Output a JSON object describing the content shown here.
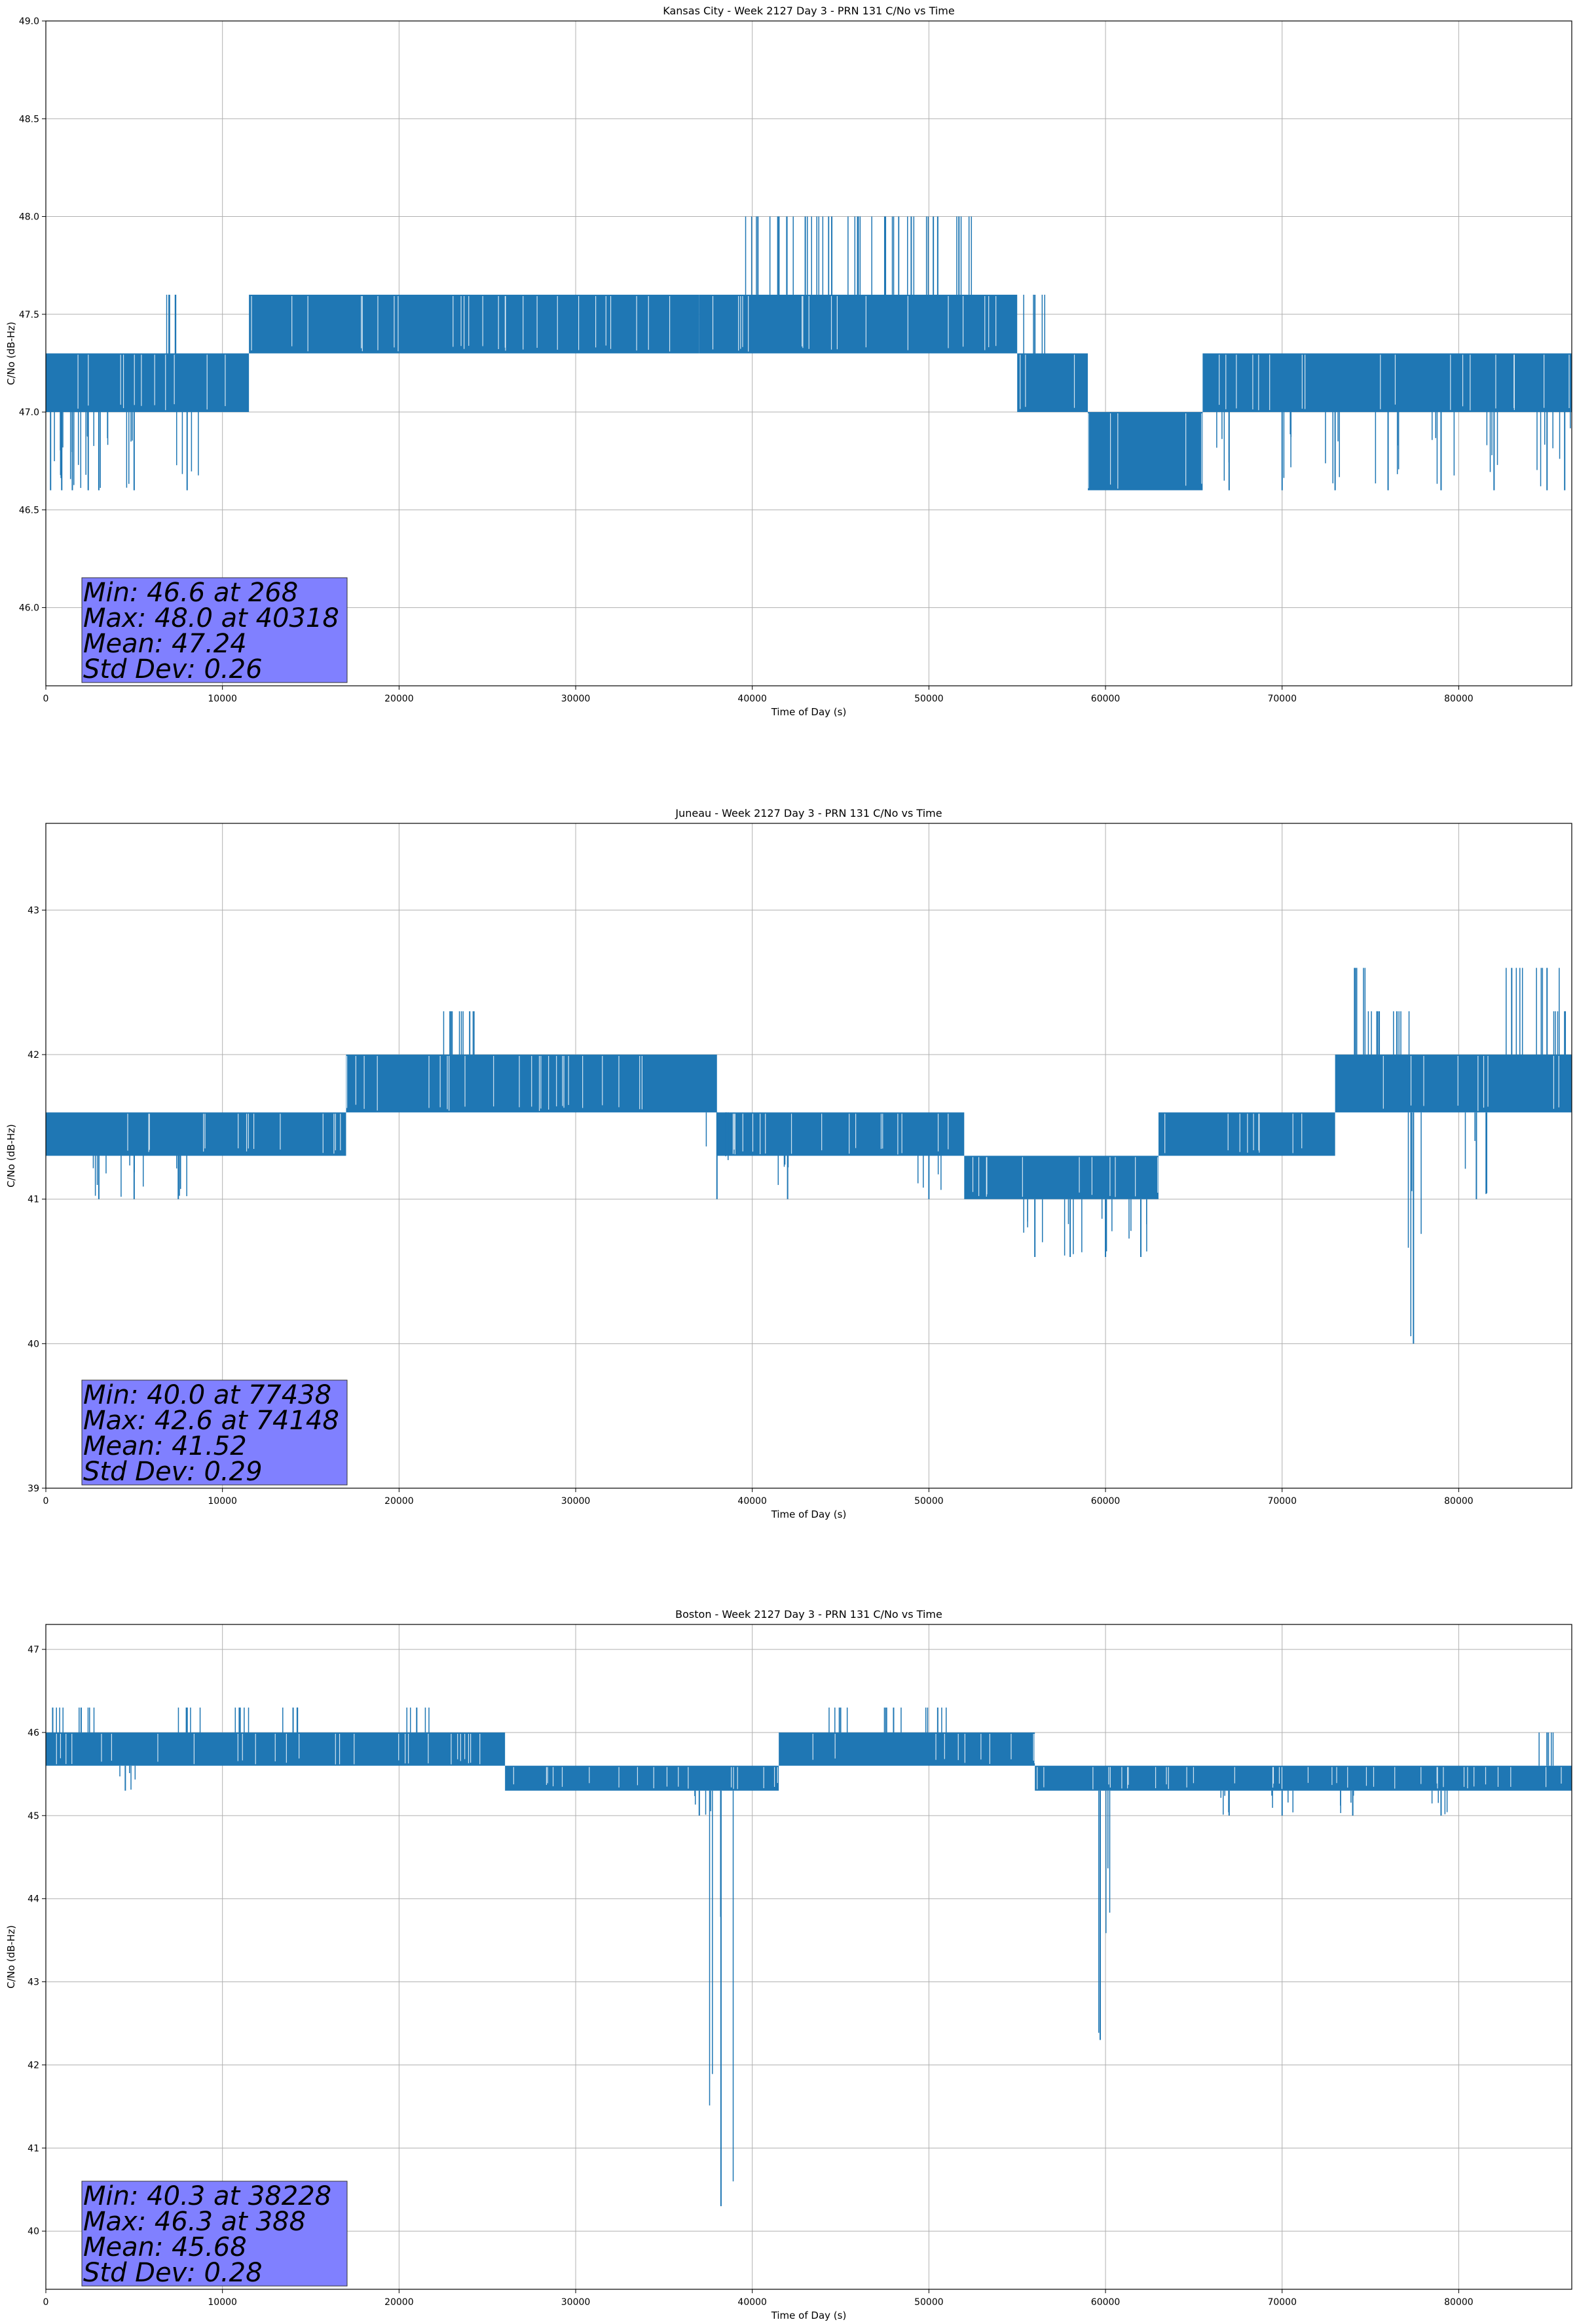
{
  "chart_data": [
    {
      "type": "line",
      "title": "Kansas City - Week 2127 Day 3 - PRN 131 C/No vs Time",
      "xlabel": "Time of Day (s)",
      "ylabel": "C/No (dB-Hz)",
      "xlim": [
        0,
        86400
      ],
      "ylim": [
        45.6,
        49.0
      ],
      "xticks": [
        0,
        10000,
        20000,
        30000,
        40000,
        50000,
        60000,
        70000,
        80000
      ],
      "yticks": [
        46.0,
        46.5,
        47.0,
        47.5,
        48.0,
        48.5,
        49.0
      ],
      "ytick_labels": [
        "46.0",
        "46.5",
        "47.0",
        "47.5",
        "48.0",
        "48.5",
        "49.0"
      ],
      "grid": true,
      "series_color": "#1f77b4",
      "band_segments": [
        {
          "x": [
            0,
            11500
          ],
          "lo": 47.0,
          "hi": 47.3
        },
        {
          "x": [
            11500,
            37000
          ],
          "lo": 47.3,
          "hi": 47.6
        },
        {
          "x": [
            37000,
            55000
          ],
          "lo": 47.3,
          "hi": 47.6
        },
        {
          "x": [
            55000,
            59000
          ],
          "lo": 47.0,
          "hi": 47.3
        },
        {
          "x": [
            59000,
            65500
          ],
          "lo": 46.6,
          "hi": 47.0
        },
        {
          "x": [
            65500,
            86400
          ],
          "lo": 47.0,
          "hi": 47.3
        }
      ],
      "spikes": [
        {
          "x": 268,
          "y": 46.6
        },
        {
          "x": 900,
          "y": 46.6
        },
        {
          "x": 1500,
          "y": 46.6
        },
        {
          "x": 2400,
          "y": 46.6
        },
        {
          "x": 3000,
          "y": 46.6
        },
        {
          "x": 5000,
          "y": 46.6
        },
        {
          "x": 7000,
          "y": 47.6
        },
        {
          "x": 8000,
          "y": 46.6
        },
        {
          "x": 40318,
          "y": 48.0
        },
        {
          "x": 41500,
          "y": 48.0
        },
        {
          "x": 43000,
          "y": 48.0
        },
        {
          "x": 44500,
          "y": 48.0
        },
        {
          "x": 46000,
          "y": 48.0
        },
        {
          "x": 47500,
          "y": 48.0
        },
        {
          "x": 49000,
          "y": 48.0
        },
        {
          "x": 50500,
          "y": 48.0
        },
        {
          "x": 51700,
          "y": 48.0
        },
        {
          "x": 56000,
          "y": 47.6
        },
        {
          "x": 57500,
          "y": 47.0
        },
        {
          "x": 67000,
          "y": 46.6
        },
        {
          "x": 70000,
          "y": 46.6
        },
        {
          "x": 73000,
          "y": 46.6
        },
        {
          "x": 76000,
          "y": 46.6
        },
        {
          "x": 79000,
          "y": 46.6
        },
        {
          "x": 82000,
          "y": 46.6
        },
        {
          "x": 85000,
          "y": 46.6
        },
        {
          "x": 86000,
          "y": 46.6
        }
      ],
      "stats": {
        "min": 46.6,
        "min_at": 268,
        "max": 48.0,
        "max_at": 40318,
        "mean": 47.24,
        "std_dev": 0.26
      },
      "stats_lines": [
        "Min: 46.6 at 268",
        "Max: 48.0 at 40318",
        "Mean: 47.24",
        "Std Dev: 0.26"
      ]
    },
    {
      "type": "line",
      "title": "Juneau - Week 2127 Day 3 - PRN 131 C/No vs Time",
      "xlabel": "Time of Day (s)",
      "ylabel": "C/No (dB-Hz)",
      "xlim": [
        0,
        86400
      ],
      "ylim": [
        39.0,
        43.6
      ],
      "xticks": [
        0,
        10000,
        20000,
        30000,
        40000,
        50000,
        60000,
        70000,
        80000
      ],
      "yticks": [
        39,
        40,
        41,
        42,
        43
      ],
      "ytick_labels": [
        "39",
        "40",
        "41",
        "42",
        "43"
      ],
      "grid": true,
      "series_color": "#1f77b4",
      "band_segments": [
        {
          "x": [
            0,
            17000
          ],
          "lo": 41.3,
          "hi": 41.6
        },
        {
          "x": [
            17000,
            38000
          ],
          "lo": 41.6,
          "hi": 42.0
        },
        {
          "x": [
            38000,
            52000
          ],
          "lo": 41.3,
          "hi": 41.6
        },
        {
          "x": [
            52000,
            63000
          ],
          "lo": 41.0,
          "hi": 41.3
        },
        {
          "x": [
            63000,
            73000
          ],
          "lo": 41.3,
          "hi": 41.6
        },
        {
          "x": [
            73000,
            86400
          ],
          "lo": 41.6,
          "hi": 42.0
        }
      ],
      "spikes": [
        {
          "x": 3000,
          "y": 41.0
        },
        {
          "x": 5000,
          "y": 41.0
        },
        {
          "x": 7500,
          "y": 41.0
        },
        {
          "x": 23000,
          "y": 42.3
        },
        {
          "x": 24000,
          "y": 42.3
        },
        {
          "x": 38000,
          "y": 41.0
        },
        {
          "x": 42000,
          "y": 41.0
        },
        {
          "x": 50000,
          "y": 41.0
        },
        {
          "x": 56000,
          "y": 40.6
        },
        {
          "x": 58000,
          "y": 40.6
        },
        {
          "x": 60000,
          "y": 40.6
        },
        {
          "x": 62000,
          "y": 40.6
        },
        {
          "x": 74148,
          "y": 42.6
        },
        {
          "x": 75500,
          "y": 42.3
        },
        {
          "x": 76500,
          "y": 42.3
        },
        {
          "x": 77438,
          "y": 40.0
        },
        {
          "x": 81000,
          "y": 41.0
        },
        {
          "x": 83000,
          "y": 42.6
        },
        {
          "x": 85000,
          "y": 42.6
        },
        {
          "x": 86000,
          "y": 42.3
        }
      ],
      "stats": {
        "min": 40.0,
        "min_at": 77438,
        "max": 42.6,
        "max_at": 74148,
        "mean": 41.52,
        "std_dev": 0.29
      },
      "stats_lines": [
        "Min: 40.0 at 77438",
        "Max: 42.6 at 74148",
        "Mean: 41.52",
        "Std Dev: 0.29"
      ]
    },
    {
      "type": "line",
      "title": "Boston - Week 2127 Day 3 - PRN 131 C/No vs Time",
      "xlabel": "Time of Day (s)",
      "ylabel": "C/No (dB-Hz)",
      "xlim": [
        0,
        86400
      ],
      "ylim": [
        39.3,
        47.3
      ],
      "xticks": [
        0,
        10000,
        20000,
        30000,
        40000,
        50000,
        60000,
        70000,
        80000
      ],
      "yticks": [
        40,
        41,
        42,
        43,
        44,
        45,
        46,
        47
      ],
      "ytick_labels": [
        "40",
        "41",
        "42",
        "43",
        "44",
        "45",
        "46",
        "47"
      ],
      "grid": true,
      "series_color": "#1f77b4",
      "band_segments": [
        {
          "x": [
            0,
            26000
          ],
          "lo": 45.6,
          "hi": 46.0
        },
        {
          "x": [
            26000,
            41500
          ],
          "lo": 45.3,
          "hi": 45.6
        },
        {
          "x": [
            41500,
            56000
          ],
          "lo": 45.6,
          "hi": 46.0
        },
        {
          "x": [
            56000,
            86400
          ],
          "lo": 45.3,
          "hi": 45.6
        }
      ],
      "spikes": [
        {
          "x": 388,
          "y": 46.3
        },
        {
          "x": 2000,
          "y": 46.3
        },
        {
          "x": 4500,
          "y": 45.3
        },
        {
          "x": 8000,
          "y": 46.3
        },
        {
          "x": 11000,
          "y": 46.3
        },
        {
          "x": 14000,
          "y": 46.3
        },
        {
          "x": 21000,
          "y": 46.3
        },
        {
          "x": 37000,
          "y": 45.0
        },
        {
          "x": 38228,
          "y": 40.3
        },
        {
          "x": 45000,
          "y": 46.3
        },
        {
          "x": 48000,
          "y": 46.3
        },
        {
          "x": 50500,
          "y": 46.3
        },
        {
          "x": 59700,
          "y": 42.3
        },
        {
          "x": 67000,
          "y": 45.0
        },
        {
          "x": 70000,
          "y": 45.0
        },
        {
          "x": 74000,
          "y": 45.0
        },
        {
          "x": 79000,
          "y": 45.0
        },
        {
          "x": 85000,
          "y": 46.0
        }
      ],
      "stats": {
        "min": 40.3,
        "min_at": 38228,
        "max": 46.3,
        "max_at": 388,
        "mean": 45.68,
        "std_dev": 0.28
      },
      "stats_lines": [
        "Min: 40.3 at 38228",
        "Max: 46.3 at 388",
        "Mean: 45.68",
        "Std Dev: 0.28"
      ]
    }
  ],
  "colors": {
    "series": "#1f77b4",
    "stats_box": "#8080ff",
    "grid": "#b0b0b0"
  }
}
